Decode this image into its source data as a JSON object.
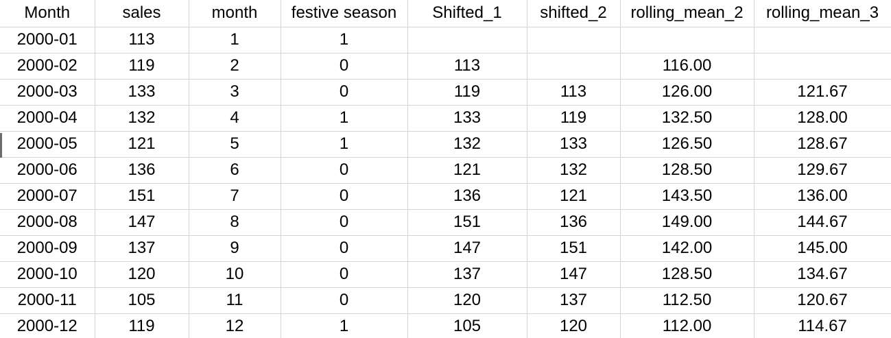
{
  "sheet": {
    "headers": [
      "Month",
      "sales",
      "month",
      "festive season",
      "Shifted_1",
      "shifted_2",
      "rolling_mean_2",
      "rolling_mean_3"
    ],
    "rows": [
      [
        "2000-01",
        "113",
        "1",
        "1",
        "",
        "",
        "",
        ""
      ],
      [
        "2000-02",
        "119",
        "2",
        "0",
        "113",
        "",
        "116.00",
        ""
      ],
      [
        "2000-03",
        "133",
        "3",
        "0",
        "119",
        "113",
        "126.00",
        "121.67"
      ],
      [
        "2000-04",
        "132",
        "4",
        "1",
        "133",
        "119",
        "132.50",
        "128.00"
      ],
      [
        "2000-05",
        "121",
        "5",
        "1",
        "132",
        "133",
        "126.50",
        "128.67"
      ],
      [
        "2000-06",
        "136",
        "6",
        "0",
        "121",
        "132",
        "128.50",
        "129.67"
      ],
      [
        "2000-07",
        "151",
        "7",
        "0",
        "136",
        "121",
        "143.50",
        "136.00"
      ],
      [
        "2000-08",
        "147",
        "8",
        "0",
        "151",
        "136",
        "149.00",
        "144.67"
      ],
      [
        "2000-09",
        "137",
        "9",
        "0",
        "147",
        "151",
        "142.00",
        "145.00"
      ],
      [
        "2000-10",
        "120",
        "10",
        "0",
        "137",
        "147",
        "128.50",
        "134.67"
      ],
      [
        "2000-11",
        "105",
        "11",
        "0",
        "120",
        "137",
        "112.50",
        "120.67"
      ],
      [
        "2000-12",
        "119",
        "12",
        "1",
        "105",
        "120",
        "112.00",
        "114.67"
      ]
    ]
  },
  "colors": {
    "gridline": "#d4d4d4",
    "text": "#000000",
    "background": "#ffffff"
  }
}
